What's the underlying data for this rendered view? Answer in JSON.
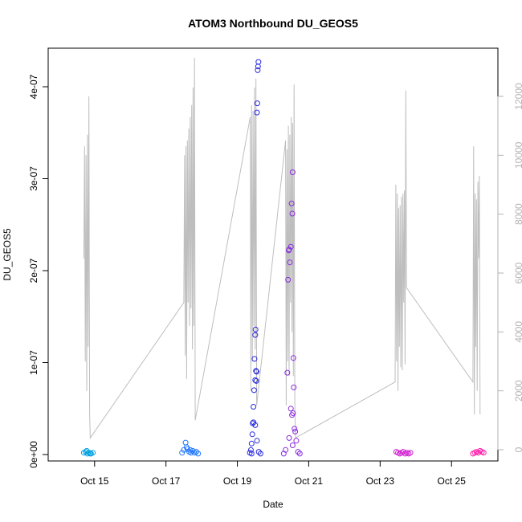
{
  "chart_data": {
    "type": "scatter",
    "title": "ATOM3 Northbound DU_GEOS5",
    "xlabel": "Date",
    "ylabel": "DU_GEOS5",
    "x_ticks": [
      "Oct 15",
      "Oct 17",
      "Oct 19",
      "Oct 21",
      "Oct 23",
      "Oct 25"
    ],
    "x_tick_days": [
      15,
      17,
      19,
      21,
      23,
      25
    ],
    "xlim_days": [
      13.7,
      26.3
    ],
    "ylim": [
      -1e-07,
      4.45e-07
    ],
    "y_ticks": [
      0,
      1e-07,
      2e-07,
      3e-07,
      4e-07
    ],
    "y_tick_labels": [
      "0e+00",
      "1e-07",
      "2e-07",
      "3e-07",
      "4e-07"
    ],
    "y2_ticks": [
      0,
      2000,
      4000,
      6000,
      8000,
      10000,
      12000
    ],
    "y2_tick_labels": [
      "0",
      "2000",
      "4000",
      "6000",
      "8000",
      "10000",
      "12000"
    ],
    "y2lim": [
      -300,
      13000
    ],
    "grid": false,
    "point_series": [
      {
        "color": "#00a0e0",
        "points": [
          [
            14.7,
            2e-09
          ],
          [
            14.75,
            3e-09
          ],
          [
            14.8,
            1e-09
          ],
          [
            14.85,
            2e-09
          ],
          [
            14.9,
            1e-09
          ],
          [
            14.95,
            2e-09
          ],
          [
            14.78,
            4e-09
          ],
          [
            14.88,
            1e-09
          ]
        ]
      },
      {
        "color": "#1f77ff",
        "points": [
          [
            17.45,
            2e-09
          ],
          [
            17.5,
            5e-09
          ],
          [
            17.55,
            1.3e-08
          ],
          [
            17.6,
            6e-09
          ],
          [
            17.65,
            3e-09
          ],
          [
            17.7,
            2e-09
          ],
          [
            17.75,
            4e-09
          ],
          [
            17.8,
            2e-09
          ],
          [
            17.85,
            3e-09
          ],
          [
            17.9,
            1e-09
          ],
          [
            17.58,
            8e-09
          ],
          [
            17.68,
            5e-09
          ]
        ]
      },
      {
        "color": "#2a2ae0",
        "points": [
          [
            19.35,
            2e-09
          ],
          [
            19.38,
            5e-09
          ],
          [
            19.4,
            1.2e-08
          ],
          [
            19.42,
            2.2e-08
          ],
          [
            19.43,
            3.4e-08
          ],
          [
            19.45,
            5.2e-08
          ],
          [
            19.47,
            7e-08
          ],
          [
            19.48,
            1.04e-07
          ],
          [
            19.5,
            1.3e-07
          ],
          [
            19.51,
            1.36e-07
          ],
          [
            19.52,
            9.1e-08
          ],
          [
            19.54,
            9e-08
          ],
          [
            19.5,
            8.1e-08
          ],
          [
            19.53,
            8e-08
          ],
          [
            19.55,
            3.72e-07
          ],
          [
            19.56,
            3.82e-07
          ],
          [
            19.57,
            4.18e-07
          ],
          [
            19.58,
            4.22e-07
          ],
          [
            19.59,
            4.27e-07
          ],
          [
            19.45,
            3.5e-08
          ],
          [
            19.5,
            3.2e-08
          ],
          [
            19.55,
            1.5e-08
          ],
          [
            19.6,
            3e-09
          ],
          [
            19.65,
            1e-09
          ],
          [
            19.4,
            1e-09
          ]
        ]
      },
      {
        "color": "#8a2be2",
        "points": [
          [
            20.3,
            1e-09
          ],
          [
            20.35,
            5e-09
          ],
          [
            20.4,
            8.9e-08
          ],
          [
            20.42,
            1.9e-07
          ],
          [
            20.44,
            2.22e-07
          ],
          [
            20.45,
            2.23e-07
          ],
          [
            20.47,
            2.09e-07
          ],
          [
            20.5,
            2.26e-07
          ],
          [
            20.52,
            2.73e-07
          ],
          [
            20.54,
            2.62e-07
          ],
          [
            20.55,
            3.07e-07
          ],
          [
            20.57,
            1.05e-07
          ],
          [
            20.58,
            7.3e-08
          ],
          [
            20.5,
            5e-08
          ],
          [
            20.53,
            4.3e-08
          ],
          [
            20.56,
            4.5e-08
          ],
          [
            20.6,
            2.8e-08
          ],
          [
            20.62,
            2.5e-08
          ],
          [
            20.65,
            1.5e-08
          ],
          [
            20.55,
            1e-08
          ],
          [
            20.45,
            1.8e-08
          ],
          [
            20.7,
            3e-09
          ],
          [
            20.75,
            1e-09
          ]
        ]
      },
      {
        "color": "#d01ed0",
        "points": [
          [
            23.45,
            3e-09
          ],
          [
            23.5,
            2e-09
          ],
          [
            23.55,
            1e-09
          ],
          [
            23.6,
            2e-09
          ],
          [
            23.65,
            3e-09
          ],
          [
            23.7,
            1e-09
          ],
          [
            23.75,
            2e-09
          ],
          [
            23.8,
            1e-09
          ],
          [
            23.85,
            2e-09
          ]
        ]
      },
      {
        "color": "#ff1aa8",
        "points": [
          [
            25.6,
            1e-09
          ],
          [
            25.65,
            2e-09
          ],
          [
            25.7,
            3e-09
          ],
          [
            25.75,
            2e-09
          ],
          [
            25.8,
            4e-09
          ],
          [
            25.85,
            3e-09
          ],
          [
            25.9,
            2e-09
          ]
        ]
      }
    ],
    "line_series": {
      "color": "#bebebe",
      "axis": "y2",
      "points": [
        [
          14.7,
          6500
        ],
        [
          14.72,
          10300
        ],
        [
          14.74,
          3000
        ],
        [
          14.76,
          10000
        ],
        [
          14.78,
          2000
        ],
        [
          14.8,
          10700
        ],
        [
          14.82,
          3500
        ],
        [
          14.84,
          12000
        ],
        [
          14.86,
          1200
        ],
        [
          14.88,
          400
        ],
        [
          17.5,
          5000
        ],
        [
          17.52,
          10000
        ],
        [
          17.54,
          3200
        ],
        [
          17.56,
          10300
        ],
        [
          17.58,
          2400
        ],
        [
          17.6,
          10500
        ],
        [
          17.62,
          5000
        ],
        [
          17.64,
          10900
        ],
        [
          17.66,
          4200
        ],
        [
          17.68,
          11300
        ],
        [
          17.7,
          4800
        ],
        [
          17.72,
          11700
        ],
        [
          17.74,
          3400
        ],
        [
          17.76,
          12300
        ],
        [
          17.78,
          4200
        ],
        [
          17.8,
          13300
        ],
        [
          17.82,
          1000
        ],
        [
          19.36,
          11300
        ],
        [
          19.38,
          2000
        ],
        [
          19.4,
          11700
        ],
        [
          19.42,
          3000
        ],
        [
          19.44,
          11500
        ],
        [
          19.46,
          4200
        ],
        [
          19.48,
          12300
        ],
        [
          19.5,
          3400
        ],
        [
          19.52,
          12600
        ],
        [
          19.54,
          1500
        ],
        [
          20.35,
          10500
        ],
        [
          20.37,
          1500
        ],
        [
          20.39,
          10200
        ],
        [
          20.41,
          3000
        ],
        [
          20.43,
          11000
        ],
        [
          20.45,
          2500
        ],
        [
          20.47,
          10700
        ],
        [
          20.49,
          5000
        ],
        [
          20.51,
          11300
        ],
        [
          20.53,
          4000
        ],
        [
          20.55,
          11100
        ],
        [
          20.57,
          2500
        ],
        [
          20.59,
          12400
        ],
        [
          20.61,
          1500
        ],
        [
          20.63,
          400
        ],
        [
          23.42,
          2300
        ],
        [
          23.44,
          9000
        ],
        [
          23.46,
          3000
        ],
        [
          23.48,
          8700
        ],
        [
          23.5,
          2000
        ],
        [
          23.52,
          8200
        ],
        [
          23.54,
          3500
        ],
        [
          23.56,
          8300
        ],
        [
          23.58,
          2800
        ],
        [
          23.6,
          8600
        ],
        [
          23.62,
          2700
        ],
        [
          23.64,
          8700
        ],
        [
          23.66,
          5000
        ],
        [
          23.68,
          8800
        ],
        [
          23.7,
          2900
        ],
        [
          23.72,
          12200
        ],
        [
          23.74,
          5500
        ],
        [
          25.6,
          2300
        ],
        [
          25.62,
          10300
        ],
        [
          25.64,
          1200
        ],
        [
          25.66,
          8700
        ],
        [
          25.68,
          3500
        ],
        [
          25.7,
          8500
        ],
        [
          25.72,
          2000
        ],
        [
          25.74,
          9100
        ],
        [
          25.76,
          6500
        ],
        [
          25.78,
          9300
        ],
        [
          25.8,
          1200
        ]
      ]
    }
  }
}
